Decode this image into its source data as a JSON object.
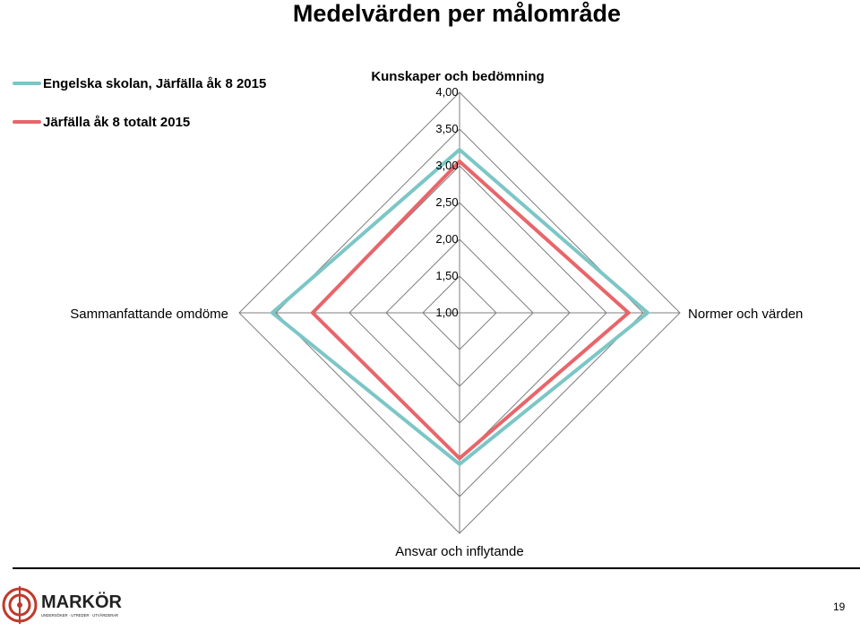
{
  "slide": {
    "title": "Medelvärden per målområde",
    "page_number": "19"
  },
  "logo": {
    "name": "MARKÖR",
    "tagline": "UNDERSÖKER · UTREDER · UTVÄRDERAR"
  },
  "colors": {
    "series_1": "#7cc6c6",
    "series_2": "#e8656a",
    "grid": "#7f7f7f",
    "logo_red": "#c0392b"
  },
  "chart_data": {
    "type": "radar",
    "title": "",
    "axes": [
      "Kunskaper och bedömning",
      "Normer och värden",
      "Ansvar och inflytande",
      "Sammanfattande omdöme"
    ],
    "r_range": [
      1.0,
      4.0
    ],
    "tick_values": [
      4.0,
      3.5,
      3.0,
      2.5,
      2.0,
      1.5,
      1.0
    ],
    "tick_labels": [
      "4,00",
      "3,50",
      "3,00",
      "2,50",
      "2,00",
      "1,50",
      "1,00"
    ],
    "grid": true,
    "legend_position": "top-left",
    "series": [
      {
        "name": "Engelska skolan, Järfälla åk 8  2015",
        "values": [
          3.22,
          3.56,
          3.06,
          3.55
        ]
      },
      {
        "name": "Järfälla åk 8 totalt 2015",
        "values": [
          3.06,
          3.3,
          2.98,
          3.0
        ]
      }
    ]
  }
}
